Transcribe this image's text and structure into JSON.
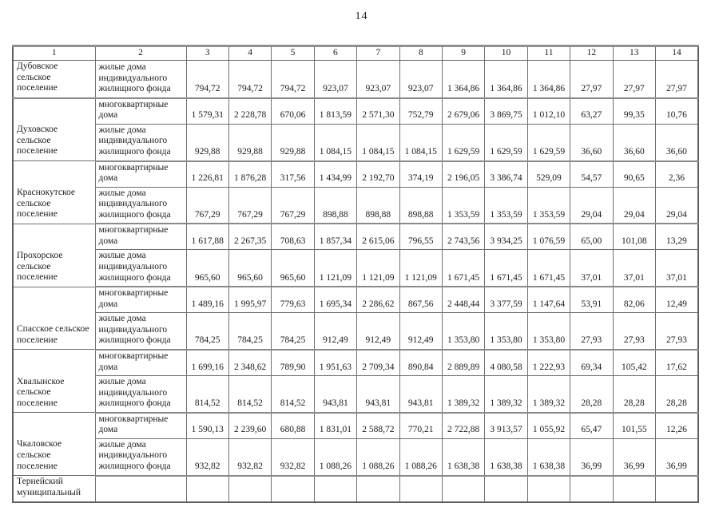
{
  "page": {
    "number": "14"
  },
  "table": {
    "header_cols": [
      "1",
      "2",
      "3",
      "4",
      "5",
      "6",
      "7",
      "8",
      "9",
      "10",
      "11",
      "12",
      "13",
      "14"
    ],
    "housing_type_labels": {
      "individual": "жилые дома\nиндивидуального\nжилищного фонда",
      "apartment": "многоквартирные\nдома"
    },
    "rows": [
      {
        "kind": "individual",
        "name_cell": {
          "text": "Дубовское\nсельское\nпоселение",
          "rowspan": 1
        },
        "label": "жилые дома\nиндивидуального\nжилищного фонда",
        "values": [
          "794,72",
          "794,72",
          "794,72",
          "923,07",
          "923,07",
          "923,07",
          "1 364,86",
          "1 364,86",
          "1 364,86",
          "27,97",
          "27,97",
          "27,97"
        ]
      },
      {
        "kind": "apartment",
        "name_cell": {
          "text": "Духовское\nсельское\nпоселение",
          "rowspan": 2
        },
        "label": "многоквартирные\nдома",
        "values": [
          "1 579,31",
          "2 228,78",
          "670,06",
          "1 813,59",
          "2 571,30",
          "752,79",
          "2 679,06",
          "3 869,75",
          "1 012,10",
          "63,27",
          "99,35",
          "10,76"
        ]
      },
      {
        "kind": "individual",
        "name_cell": null,
        "label": "жилые дома\nиндивидуального\nжилищного фонда",
        "values": [
          "929,88",
          "929,88",
          "929,88",
          "1 084,15",
          "1 084,15",
          "1 084,15",
          "1 629,59",
          "1 629,59",
          "1 629,59",
          "36,60",
          "36,60",
          "36,60"
        ]
      },
      {
        "kind": "apartment",
        "name_cell": {
          "text": "Краснокутское\nсельское\nпоселение",
          "rowspan": 2
        },
        "label": "многоквартирные\nдома",
        "values": [
          "1 226,81",
          "1 876,28",
          "317,56",
          "1 434,99",
          "2 192,70",
          "374,19",
          "2 196,05",
          "3 386,74",
          "529,09",
          "54,57",
          "90,65",
          "2,36"
        ]
      },
      {
        "kind": "individual",
        "name_cell": null,
        "label": "жилые дома\nиндивидуального\nжилищного фонда",
        "values": [
          "767,29",
          "767,29",
          "767,29",
          "898,88",
          "898,88",
          "898,88",
          "1 353,59",
          "1 353,59",
          "1 353,59",
          "29,04",
          "29,04",
          "29,04"
        ]
      },
      {
        "kind": "apartment",
        "name_cell": {
          "text": "Прохорское\nсельское\nпоселение",
          "rowspan": 2
        },
        "label": "многоквартирные\nдома",
        "values": [
          "1 617,88",
          "2 267,35",
          "708,63",
          "1 857,34",
          "2 615,06",
          "796,55",
          "2 743,56",
          "3 934,25",
          "1 076,59",
          "65,00",
          "101,08",
          "13,29"
        ]
      },
      {
        "kind": "individual",
        "name_cell": null,
        "label": "жилые дома\nиндивидуального\nжилищного фонда",
        "values": [
          "965,60",
          "965,60",
          "965,60",
          "1 121,09",
          "1 121,09",
          "1 121,09",
          "1 671,45",
          "1 671,45",
          "1 671,45",
          "37,01",
          "37,01",
          "37,01"
        ]
      },
      {
        "kind": "apartment",
        "name_cell": {
          "text": "Спасское сельское\nпоселение",
          "rowspan": 2
        },
        "label": "многоквартирные\nдома",
        "values": [
          "1 489,16",
          "1 995,97",
          "779,63",
          "1 695,34",
          "2 286,62",
          "867,56",
          "2 448,44",
          "3 377,59",
          "1 147,64",
          "53,91",
          "82,06",
          "12,49"
        ]
      },
      {
        "kind": "individual",
        "name_cell": null,
        "label": "жилые дома\nиндивидуального\nжилищного фонда",
        "values": [
          "784,25",
          "784,25",
          "784,25",
          "912,49",
          "912,49",
          "912,49",
          "1 353,80",
          "1 353,80",
          "1 353,80",
          "27,93",
          "27,93",
          "27,93"
        ]
      },
      {
        "kind": "apartment",
        "name_cell": {
          "text": "Хвалынское\nсельское\nпоселение",
          "rowspan": 2
        },
        "label": "многоквартирные\nдома",
        "values": [
          "1 699,16",
          "2 348,62",
          "789,90",
          "1 951,63",
          "2 709,34",
          "890,84",
          "2 889,89",
          "4 080,58",
          "1 222,93",
          "69,34",
          "105,42",
          "17,62"
        ]
      },
      {
        "kind": "individual",
        "name_cell": null,
        "label": "жилые дома\nиндивидуального\nжилищного фонда",
        "values": [
          "814,52",
          "814,52",
          "814,52",
          "943,81",
          "943,81",
          "943,81",
          "1 389,32",
          "1 389,32",
          "1 389,32",
          "28,28",
          "28,28",
          "28,28"
        ]
      },
      {
        "kind": "apartment",
        "name_cell": {
          "text": "Чкаловское\nсельское\nпоселение",
          "rowspan": 2
        },
        "label": "многоквартирные\nдома",
        "values": [
          "1 590,13",
          "2 239,60",
          "680,88",
          "1 831,01",
          "2 588,72",
          "770,21",
          "2 722,88",
          "3 913,57",
          "1 055,92",
          "65,47",
          "101,55",
          "12,26"
        ]
      },
      {
        "kind": "individual",
        "name_cell": null,
        "label": "жилые дома\nиндивидуального\nжилищного фонда",
        "values": [
          "932,82",
          "932,82",
          "932,82",
          "1 088,26",
          "1 088,26",
          "1 088,26",
          "1 638,38",
          "1 638,38",
          "1 638,38",
          "36,99",
          "36,99",
          "36,99"
        ]
      },
      {
        "kind": "final",
        "name_cell": {
          "text": "Тернейский\nмуниципальный",
          "rowspan": 1
        },
        "label": "",
        "values": [
          "",
          "",
          "",
          "",
          "",
          "",
          "",
          "",
          "",
          "",
          "",
          ""
        ]
      }
    ]
  }
}
